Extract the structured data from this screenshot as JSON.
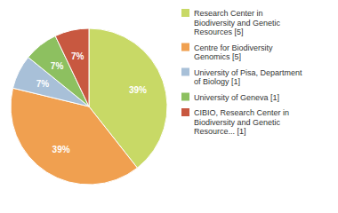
{
  "chart_data": {
    "type": "pie",
    "categories": [
      "Research Center in\nBiodiversity and Genetic\nResources [5]",
      "Centre for Biodiversity\nGenomics [5]",
      "University of Pisa, Department\nof Biology [1]",
      "University of Geneva [1]",
      "CIBIO, Research Center in\nBiodiversity and Genetic\nResource... [1]"
    ],
    "values": [
      39,
      39,
      7,
      7,
      7
    ],
    "value_labels": [
      "39%",
      "39%",
      "7%",
      "7%",
      "7%"
    ],
    "colors": [
      "#c8d966",
      "#f0a050",
      "#a8c0d8",
      "#8dc060",
      "#c85840"
    ],
    "data_labels": true,
    "legend": "right"
  }
}
